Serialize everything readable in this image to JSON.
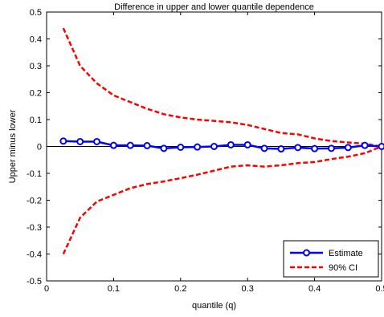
{
  "chart_data": {
    "type": "line",
    "title": "Difference in upper and lower quantile dependence",
    "xlabel": "quantile (q)",
    "ylabel": "Upper minus lower",
    "xlim": [
      0,
      0.5
    ],
    "ylim": [
      -0.5,
      0.5
    ],
    "x_ticks": [
      0,
      0.1,
      0.2,
      0.3,
      0.4,
      0.5
    ],
    "x_tick_labels": [
      "0",
      "0.1",
      "0.2",
      "0.3",
      "0.4",
      "0.5"
    ],
    "y_ticks": [
      -0.5,
      -0.4,
      -0.3,
      -0.2,
      -0.1,
      0,
      0.1,
      0.2,
      0.3,
      0.4,
      0.5
    ],
    "y_tick_labels": [
      "-0.5",
      "-0.4",
      "-0.3",
      "-0.2",
      "-0.1",
      "0",
      "0.1",
      "0.2",
      "0.3",
      "0.4",
      "0.5"
    ],
    "grid": false,
    "zero_line": true,
    "legend_position": "bottom-right",
    "series": [
      {
        "name": "Estimate",
        "style": "solid-circle",
        "color": "#0000ff",
        "x": [
          0.025,
          0.05,
          0.075,
          0.1,
          0.125,
          0.15,
          0.175,
          0.2,
          0.225,
          0.25,
          0.275,
          0.3,
          0.325,
          0.35,
          0.375,
          0.4,
          0.425,
          0.45,
          0.475,
          0.5
        ],
        "y": [
          0.02,
          0.018,
          0.018,
          0.004,
          0.004,
          0.003,
          -0.007,
          -0.003,
          -0.002,
          0.0,
          0.006,
          0.006,
          -0.007,
          -0.009,
          -0.004,
          -0.008,
          -0.007,
          -0.004,
          0.004,
          0.0
        ]
      },
      {
        "name": "90% CI",
        "style": "dashed",
        "color": "#ff0000",
        "x": [
          0.025,
          0.05,
          0.075,
          0.1,
          0.125,
          0.15,
          0.175,
          0.2,
          0.225,
          0.25,
          0.275,
          0.3,
          0.325,
          0.35,
          0.375,
          0.4,
          0.425,
          0.45,
          0.475,
          0.5
        ],
        "y": [
          0.44,
          0.3,
          0.235,
          0.19,
          0.165,
          0.14,
          0.12,
          0.108,
          0.1,
          0.095,
          0.09,
          0.08,
          0.065,
          0.05,
          0.045,
          0.03,
          0.02,
          0.015,
          0.01,
          0.0
        ]
      },
      {
        "name": "90% CI",
        "style": "dashed",
        "color": "#ff0000",
        "x": [
          0.025,
          0.05,
          0.075,
          0.1,
          0.125,
          0.15,
          0.175,
          0.2,
          0.225,
          0.25,
          0.275,
          0.3,
          0.325,
          0.35,
          0.375,
          0.4,
          0.425,
          0.45,
          0.475,
          0.5
        ],
        "y": [
          -0.4,
          -0.265,
          -0.205,
          -0.18,
          -0.155,
          -0.14,
          -0.13,
          -0.118,
          -0.105,
          -0.09,
          -0.075,
          -0.07,
          -0.075,
          -0.07,
          -0.062,
          -0.058,
          -0.047,
          -0.038,
          -0.025,
          0.0
        ]
      }
    ]
  }
}
